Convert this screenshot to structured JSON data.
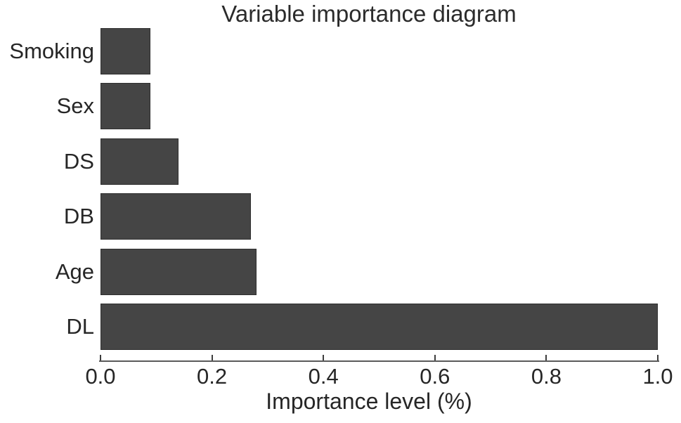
{
  "chart_data": {
    "type": "bar",
    "orientation": "horizontal",
    "title": "Variable importance diagram",
    "xlabel": "Importance level (%)",
    "ylabel": "",
    "categories": [
      "Smoking",
      "Sex",
      "DS",
      "DB",
      "Age",
      "DL"
    ],
    "values": [
      0.09,
      0.09,
      0.14,
      0.27,
      0.28,
      1.0
    ],
    "xlim": [
      0.0,
      1.0
    ],
    "xticks": [
      0.0,
      0.2,
      0.4,
      0.6,
      0.8,
      1.0
    ],
    "xtick_labels": [
      "0.0",
      "0.2",
      "0.4",
      "0.6",
      "0.8",
      "1.0"
    ],
    "grid": false,
    "legend": null,
    "colors": {
      "bar_fill": "#454545",
      "bar_border": "#2f2f2f",
      "axis_line": "#5a5a5a",
      "tick_mark": "#3d3d3d",
      "text": "#262626",
      "background": "#ffffff"
    }
  }
}
